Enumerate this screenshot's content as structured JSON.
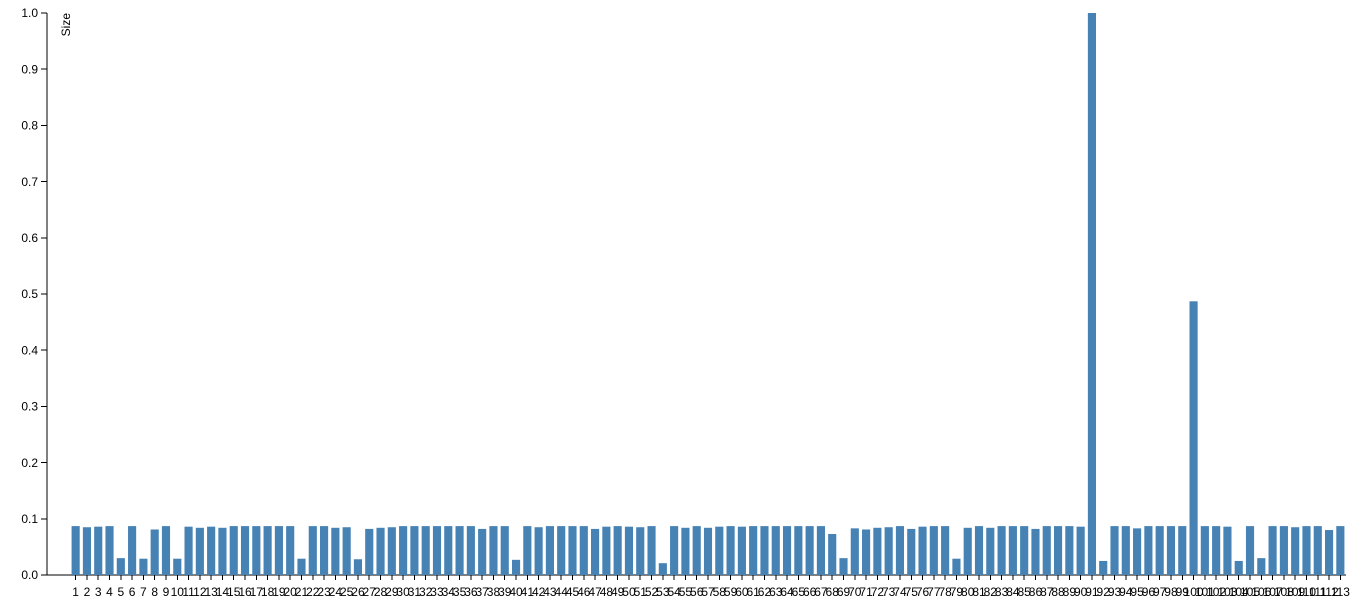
{
  "chart_data": {
    "type": "bar",
    "y_label": "Size",
    "color": "#4682b4",
    "categories": [
      "1",
      "2",
      "3",
      "4",
      "5",
      "6",
      "7",
      "8",
      "9",
      "10",
      "11",
      "12",
      "13",
      "14",
      "15",
      "16",
      "17",
      "18",
      "19",
      "20",
      "21",
      "22",
      "23",
      "24",
      "25",
      "26",
      "27",
      "28",
      "29",
      "30",
      "31",
      "32",
      "33",
      "34",
      "35",
      "36",
      "37",
      "38",
      "39",
      "40",
      "41",
      "42",
      "43",
      "44",
      "45",
      "46",
      "47",
      "48",
      "49",
      "50",
      "51",
      "52",
      "53",
      "54",
      "55",
      "56",
      "57",
      "58",
      "59",
      "60",
      "61",
      "62",
      "63",
      "64",
      "65",
      "66",
      "67",
      "68",
      "69",
      "70",
      "71",
      "72",
      "73",
      "74",
      "75",
      "76",
      "77",
      "78",
      "79",
      "80",
      "81",
      "82",
      "83",
      "84",
      "85",
      "86",
      "87",
      "88",
      "89",
      "90",
      "91",
      "92",
      "93",
      "94",
      "95",
      "96",
      "97",
      "98",
      "99",
      "100",
      "101",
      "102",
      "103",
      "104",
      "105",
      "106",
      "107",
      "108",
      "109",
      "110",
      "111",
      "112",
      "113"
    ],
    "values": [
      0.087,
      0.085,
      0.086,
      0.087,
      0.03,
      0.087,
      0.029,
      0.081,
      0.087,
      0.029,
      0.086,
      0.084,
      0.086,
      0.084,
      0.087,
      0.087,
      0.087,
      0.087,
      0.087,
      0.087,
      0.029,
      0.087,
      0.087,
      0.084,
      0.085,
      0.028,
      0.082,
      0.084,
      0.085,
      0.087,
      0.087,
      0.087,
      0.087,
      0.087,
      0.087,
      0.087,
      0.082,
      0.087,
      0.087,
      0.027,
      0.087,
      0.085,
      0.087,
      0.087,
      0.087,
      0.087,
      0.082,
      0.086,
      0.087,
      0.086,
      0.085,
      0.087,
      0.021,
      0.087,
      0.084,
      0.087,
      0.084,
      0.086,
      0.087,
      0.086,
      0.087,
      0.087,
      0.087,
      0.087,
      0.087,
      0.087,
      0.087,
      0.073,
      0.03,
      0.083,
      0.081,
      0.084,
      0.085,
      0.087,
      0.082,
      0.086,
      0.087,
      0.087,
      0.029,
      0.084,
      0.087,
      0.084,
      0.087,
      0.087,
      0.087,
      0.082,
      0.087,
      0.087,
      0.087,
      0.086,
      1.0,
      0.025,
      0.087,
      0.087,
      0.083,
      0.087,
      0.087,
      0.087,
      0.087,
      0.487,
      0.087,
      0.087,
      0.086,
      0.025,
      0.087,
      0.03,
      0.087,
      0.087,
      0.085,
      0.087,
      0.087,
      0.08,
      0.087
    ],
    "ylim": [
      0,
      1
    ],
    "yticks": [
      {
        "value": 0,
        "label": "0.0"
      },
      {
        "value": 0.1,
        "label": "0.1"
      },
      {
        "value": 0.2,
        "label": "0.2"
      },
      {
        "value": 0.3,
        "label": "0.3"
      },
      {
        "value": 0.4,
        "label": "0.4"
      },
      {
        "value": 0.5,
        "label": "0.5"
      },
      {
        "value": 0.6,
        "label": "0.6"
      },
      {
        "value": 0.7,
        "label": "0.7"
      },
      {
        "value": 0.8,
        "label": "0.8"
      },
      {
        "value": 0.9,
        "label": "0.9"
      },
      {
        "value": 1,
        "label": "1.0"
      }
    ]
  }
}
